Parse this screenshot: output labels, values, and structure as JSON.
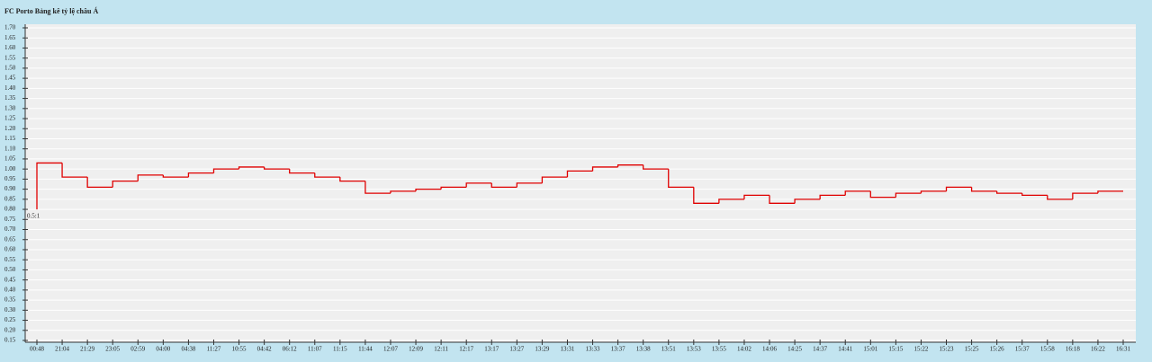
{
  "chart_data": {
    "type": "step-line",
    "title": "FC Porto Bảng kê tỷ lệ châu Á",
    "annotation": "0.5:1",
    "categories": [
      "00:48",
      "21:04",
      "21:29",
      "23:05",
      "02:59",
      "04:00",
      "04:38",
      "11:27",
      "10:55",
      "04:42",
      "06:12",
      "11:07",
      "11:15",
      "11:44",
      "12:07",
      "12:09",
      "12:11",
      "12:17",
      "13:17",
      "13:27",
      "13:29",
      "13:31",
      "13:33",
      "13:37",
      "13:38",
      "13:51",
      "13:53",
      "13:55",
      "14:02",
      "14:06",
      "14:25",
      "14:37",
      "14:41",
      "15:01",
      "15:15",
      "15:22",
      "15:23",
      "15:25",
      "15:26",
      "15:37",
      "15:58",
      "16:18",
      "16:22",
      "16:31"
    ],
    "values": [
      0.8,
      1.03,
      0.96,
      0.91,
      0.94,
      0.97,
      0.96,
      0.98,
      1.0,
      1.01,
      1.0,
      0.98,
      0.96,
      0.94,
      0.88,
      0.89,
      0.9,
      0.91,
      0.93,
      0.91,
      0.93,
      0.96,
      0.99,
      1.01,
      1.02,
      1.0,
      0.91,
      0.83,
      0.85,
      0.87,
      0.83,
      0.85,
      0.87,
      0.89,
      0.86,
      0.88,
      0.89,
      0.91,
      0.89,
      0.88,
      0.87,
      0.85,
      0.88,
      0.89
    ],
    "color": "#e00000",
    "ylim": [
      0.15,
      1.7
    ],
    "yticks": [
      0.15,
      {
        "value": 0.2,
        "label": "0.20"
      },
      0.25,
      {
        "value": 0.3,
        "label": "0.30"
      },
      0.35,
      {
        "value": 0.4,
        "label": "0.40"
      },
      0.45,
      {
        "value": 0.5,
        "label": "0.50"
      },
      0.55,
      {
        "value": 0.6,
        "label": "0.60"
      },
      0.65,
      {
        "value": 0.7,
        "label": "0.70"
      },
      0.75,
      {
        "value": 0.8,
        "label": "0.80"
      },
      0.85,
      {
        "value": 0.9,
        "label": "0.90"
      },
      0.95,
      {
        "value": 1,
        "label": "1.00"
      },
      1.05,
      {
        "value": 1.1,
        "label": "1.10"
      },
      1.15,
      {
        "value": 1.2,
        "label": "1.20"
      },
      1.25,
      {
        "value": 1.3,
        "label": "1.30"
      },
      1.35,
      {
        "value": 1.4,
        "label": "1.40"
      },
      1.45,
      {
        "value": 1.5,
        "label": "1.50"
      },
      1.55,
      {
        "value": 1.6,
        "label": "1.60"
      },
      1.65,
      {
        "value": 1.7,
        "label": "1.70"
      }
    ],
    "grid": true
  }
}
